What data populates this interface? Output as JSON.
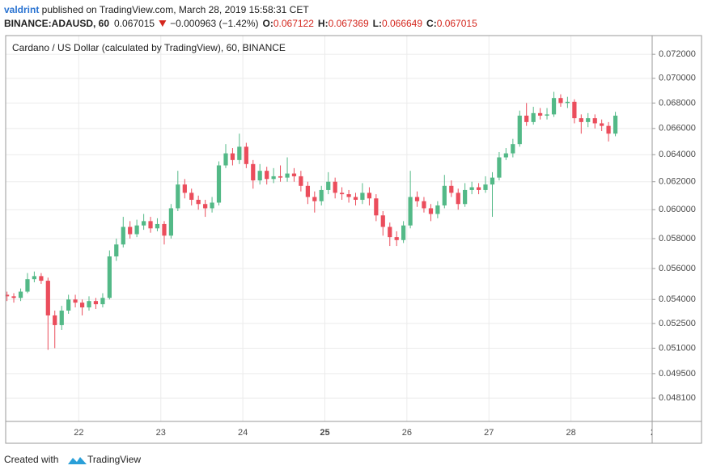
{
  "header": {
    "author": "valdrint",
    "published": " published on TradingView.com, March 28, 2019 15:58:31 CET",
    "symbol": "BINANCE:ADAUSD, 60",
    "last": "0.067015",
    "change": "−0.000963 (−1.42%)",
    "ohlc": [
      {
        "label": "O:",
        "value": "0.067122"
      },
      {
        "label": "H:",
        "value": "0.067369"
      },
      {
        "label": "L:",
        "value": "0.066649"
      },
      {
        "label": "C:",
        "value": "0.067015"
      }
    ]
  },
  "chart_data": {
    "type": "candlestick",
    "title": "Cardano / US Dollar (calculated by TradingView), 60, BINANCE",
    "x": [
      21.125,
      21.208,
      21.292,
      21.375,
      21.458,
      21.542,
      21.625,
      21.708,
      21.792,
      21.875,
      21.958,
      22.042,
      22.125,
      22.208,
      22.292,
      22.375,
      22.458,
      22.542,
      22.625,
      22.708,
      22.792,
      22.875,
      22.958,
      23.042,
      23.125,
      23.208,
      23.292,
      23.375,
      23.458,
      23.542,
      23.625,
      23.708,
      23.792,
      23.875,
      23.958,
      24.042,
      24.125,
      24.208,
      24.292,
      24.375,
      24.458,
      24.542,
      24.625,
      24.708,
      24.792,
      24.875,
      24.958,
      25.042,
      25.125,
      25.208,
      25.292,
      25.375,
      25.458,
      25.542,
      25.625,
      25.708,
      25.792,
      25.875,
      25.958,
      26.042,
      26.125,
      26.208,
      26.292,
      26.375,
      26.458,
      26.542,
      26.625,
      26.708,
      26.792,
      26.875,
      26.958,
      27.042,
      27.125,
      27.208,
      27.292,
      27.375,
      27.458,
      27.542,
      27.625,
      27.708,
      27.792,
      27.875,
      27.958,
      28.042,
      28.125,
      28.208,
      28.292,
      28.375,
      28.458,
      28.542
    ],
    "open": [
      0.0543,
      0.0542,
      0.0541,
      0.0545,
      0.0553,
      0.0555,
      0.0552,
      0.053,
      0.0524,
      0.0533,
      0.054,
      0.0538,
      0.0535,
      0.0539,
      0.0537,
      0.0541,
      0.0568,
      0.0576,
      0.0588,
      0.0583,
      0.0589,
      0.0592,
      0.0587,
      0.059,
      0.0582,
      0.0601,
      0.0618,
      0.0612,
      0.0607,
      0.0604,
      0.0601,
      0.0605,
      0.0632,
      0.0641,
      0.0636,
      0.0646,
      0.0633,
      0.0621,
      0.0628,
      0.0622,
      0.0624,
      0.0623,
      0.0626,
      0.0624,
      0.0617,
      0.0609,
      0.0606,
      0.0614,
      0.062,
      0.0612,
      0.0611,
      0.0609,
      0.0607,
      0.0612,
      0.0608,
      0.0596,
      0.0588,
      0.0581,
      0.0579,
      0.0589,
      0.0609,
      0.0606,
      0.0601,
      0.0597,
      0.0603,
      0.0617,
      0.0612,
      0.0604,
      0.0614,
      0.0616,
      0.0614,
      0.0618,
      0.0623,
      0.0638,
      0.0641,
      0.0648,
      0.067,
      0.0665,
      0.0672,
      0.067,
      0.0671,
      0.0684,
      0.068,
      0.0681,
      0.0668,
      0.0665,
      0.0668,
      0.0664,
      0.0662,
      0.0656
    ],
    "high": [
      0.0545,
      0.0544,
      0.0547,
      0.0557,
      0.0558,
      0.0557,
      0.0554,
      0.0533,
      0.0536,
      0.0543,
      0.0543,
      0.054,
      0.0542,
      0.0541,
      0.0544,
      0.0572,
      0.058,
      0.0595,
      0.0592,
      0.0593,
      0.0597,
      0.0595,
      0.0594,
      0.0592,
      0.0604,
      0.0628,
      0.0622,
      0.0615,
      0.061,
      0.0607,
      0.0609,
      0.0635,
      0.0648,
      0.0645,
      0.0656,
      0.0649,
      0.0636,
      0.0633,
      0.0631,
      0.063,
      0.0632,
      0.0638,
      0.063,
      0.0628,
      0.062,
      0.0613,
      0.0617,
      0.0627,
      0.0623,
      0.0616,
      0.0614,
      0.0612,
      0.0619,
      0.0616,
      0.0611,
      0.0599,
      0.0591,
      0.0585,
      0.0592,
      0.0628,
      0.0613,
      0.0609,
      0.0604,
      0.0606,
      0.0625,
      0.0621,
      0.0615,
      0.0619,
      0.062,
      0.0619,
      0.0624,
      0.0627,
      0.0642,
      0.0645,
      0.0652,
      0.0674,
      0.068,
      0.0677,
      0.0676,
      0.0676,
      0.0689,
      0.0687,
      0.0685,
      0.0683,
      0.0671,
      0.0672,
      0.0671,
      0.0667,
      0.0665,
      0.0673
    ],
    "low": [
      0.0539,
      0.0538,
      0.0539,
      0.0544,
      0.0551,
      0.055,
      0.0509,
      0.051,
      0.0521,
      0.0531,
      0.0535,
      0.053,
      0.0533,
      0.0534,
      0.0535,
      0.054,
      0.0565,
      0.0574,
      0.058,
      0.0581,
      0.0586,
      0.0584,
      0.0585,
      0.0576,
      0.058,
      0.0599,
      0.0608,
      0.0603,
      0.06,
      0.0595,
      0.0598,
      0.0603,
      0.063,
      0.0632,
      0.0633,
      0.063,
      0.0615,
      0.0618,
      0.0618,
      0.0619,
      0.062,
      0.062,
      0.062,
      0.0613,
      0.0604,
      0.0598,
      0.0603,
      0.0611,
      0.0608,
      0.0607,
      0.0605,
      0.0603,
      0.0604,
      0.0603,
      0.0592,
      0.0582,
      0.0575,
      0.0575,
      0.0577,
      0.0587,
      0.0602,
      0.0598,
      0.0592,
      0.0594,
      0.0601,
      0.0609,
      0.06,
      0.0602,
      0.0611,
      0.0611,
      0.0612,
      0.0595,
      0.0621,
      0.0636,
      0.0638,
      0.0646,
      0.0662,
      0.0663,
      0.0667,
      0.0667,
      0.0669,
      0.0677,
      0.0676,
      0.0664,
      0.0656,
      0.0661,
      0.066,
      0.0658,
      0.065,
      0.0654
    ],
    "close": [
      0.0542,
      0.0541,
      0.0545,
      0.0553,
      0.0555,
      0.0552,
      0.053,
      0.0524,
      0.0533,
      0.054,
      0.0538,
      0.0535,
      0.0539,
      0.0537,
      0.0541,
      0.0568,
      0.0576,
      0.0588,
      0.0583,
      0.0589,
      0.0592,
      0.0587,
      0.059,
      0.0582,
      0.0601,
      0.0618,
      0.0612,
      0.0607,
      0.0604,
      0.0601,
      0.0605,
      0.0632,
      0.0641,
      0.0636,
      0.0646,
      0.0633,
      0.0621,
      0.0628,
      0.0622,
      0.0624,
      0.0623,
      0.0626,
      0.0624,
      0.0617,
      0.0609,
      0.0606,
      0.0614,
      0.062,
      0.0612,
      0.0611,
      0.0609,
      0.0607,
      0.0612,
      0.0608,
      0.0596,
      0.0588,
      0.0581,
      0.0579,
      0.0589,
      0.0609,
      0.0606,
      0.0601,
      0.0597,
      0.0603,
      0.0617,
      0.0612,
      0.0604,
      0.0614,
      0.0616,
      0.0614,
      0.0618,
      0.0623,
      0.0638,
      0.0641,
      0.0648,
      0.067,
      0.0665,
      0.0672,
      0.067,
      0.0671,
      0.0684,
      0.068,
      0.0681,
      0.0668,
      0.0665,
      0.0668,
      0.0664,
      0.0662,
      0.0656,
      0.067
    ],
    "up_color": "#53b987",
    "down_color": "#eb4d5c",
    "xlim": [
      21.109,
      28.99
    ],
    "xticks": [
      22,
      23,
      24,
      25,
      26,
      27,
      28,
      {
        "value": 29,
        "label": "2"
      }
    ],
    "ylim": [
      0.0468,
      0.0736
    ],
    "log_scale": true,
    "grid": true,
    "yticks": [
      {
        "value": 0.072,
        "label": "0.072000"
      },
      {
        "value": 0.07,
        "label": "0.070000"
      },
      {
        "value": 0.068,
        "label": "0.068000"
      },
      {
        "value": 0.066,
        "label": "0.066000"
      },
      {
        "value": 0.064,
        "label": "0.064000"
      },
      {
        "value": 0.062,
        "label": "0.062000"
      },
      {
        "value": 0.06,
        "label": "0.060000"
      },
      {
        "value": 0.058,
        "label": "0.058000"
      },
      {
        "value": 0.056,
        "label": "0.056000"
      },
      {
        "value": 0.054,
        "label": "0.054000"
      },
      {
        "value": 0.0525,
        "label": "0.052500"
      },
      {
        "value": 0.051,
        "label": "0.051000"
      },
      {
        "value": 0.0495,
        "label": "0.049500"
      },
      {
        "value": 0.0481,
        "label": "0.048100"
      }
    ]
  },
  "footer": {
    "created": "Created with",
    "brand": "TradingView"
  }
}
